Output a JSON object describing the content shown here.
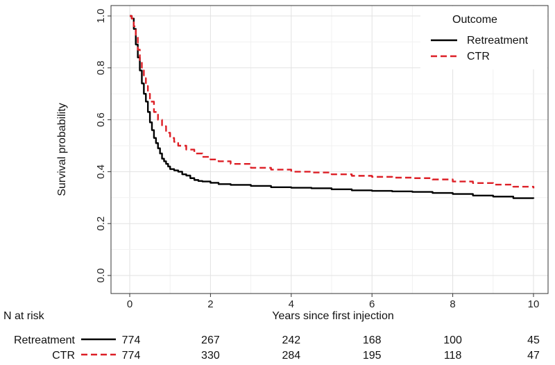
{
  "chart_data": {
    "type": "line",
    "title": "",
    "xlabel": "Years since first injection",
    "ylabel": "Survival probability",
    "xlim": [
      0,
      10
    ],
    "ylim": [
      0,
      1
    ],
    "x_ticks": [
      0,
      2,
      4,
      6,
      8,
      10
    ],
    "x_tick_labels": [
      "0",
      "2",
      "4",
      "6",
      "8",
      "10"
    ],
    "y_ticks": [
      0.0,
      0.2,
      0.4,
      0.6,
      0.8,
      1.0
    ],
    "y_tick_labels": [
      "0.0",
      "0.2",
      "0.4",
      "0.6",
      "0.8",
      "1.0"
    ],
    "grid": true,
    "legend": {
      "title": "Outcome",
      "position": "top-right",
      "entries": [
        "Retreatment",
        "CTR"
      ]
    },
    "series": [
      {
        "name": "Retreatment",
        "color": "#000000",
        "dash": "solid",
        "step": true,
        "points": [
          [
            0,
            1.0
          ],
          [
            0.05,
            0.99
          ],
          [
            0.1,
            0.95
          ],
          [
            0.15,
            0.89
          ],
          [
            0.2,
            0.84
          ],
          [
            0.25,
            0.79
          ],
          [
            0.3,
            0.74
          ],
          [
            0.35,
            0.7
          ],
          [
            0.4,
            0.67
          ],
          [
            0.45,
            0.63
          ],
          [
            0.5,
            0.59
          ],
          [
            0.55,
            0.56
          ],
          [
            0.6,
            0.53
          ],
          [
            0.65,
            0.51
          ],
          [
            0.7,
            0.49
          ],
          [
            0.75,
            0.47
          ],
          [
            0.8,
            0.45
          ],
          [
            0.85,
            0.44
          ],
          [
            0.9,
            0.43
          ],
          [
            0.95,
            0.42
          ],
          [
            1.0,
            0.41
          ],
          [
            1.1,
            0.405
          ],
          [
            1.2,
            0.4
          ],
          [
            1.3,
            0.39
          ],
          [
            1.4,
            0.385
          ],
          [
            1.5,
            0.375
          ],
          [
            1.6,
            0.368
          ],
          [
            1.7,
            0.364
          ],
          [
            1.8,
            0.362
          ],
          [
            2.0,
            0.357
          ],
          [
            2.2,
            0.352
          ],
          [
            2.5,
            0.349
          ],
          [
            3.0,
            0.345
          ],
          [
            3.5,
            0.34
          ],
          [
            4.0,
            0.338
          ],
          [
            4.5,
            0.336
          ],
          [
            5.0,
            0.332
          ],
          [
            5.5,
            0.328
          ],
          [
            6.0,
            0.326
          ],
          [
            6.5,
            0.324
          ],
          [
            7.0,
            0.322
          ],
          [
            7.5,
            0.318
          ],
          [
            8.0,
            0.314
          ],
          [
            8.5,
            0.308
          ],
          [
            9.0,
            0.304
          ],
          [
            9.5,
            0.298
          ],
          [
            10.0,
            0.296
          ]
        ]
      },
      {
        "name": "CTR",
        "color": "#dd1f26",
        "dash": "dashed",
        "step": true,
        "points": [
          [
            0,
            1.0
          ],
          [
            0.05,
            0.99
          ],
          [
            0.1,
            0.96
          ],
          [
            0.15,
            0.92
          ],
          [
            0.2,
            0.87
          ],
          [
            0.25,
            0.83
          ],
          [
            0.3,
            0.79
          ],
          [
            0.35,
            0.76
          ],
          [
            0.4,
            0.73
          ],
          [
            0.45,
            0.7
          ],
          [
            0.5,
            0.67
          ],
          [
            0.6,
            0.63
          ],
          [
            0.7,
            0.6
          ],
          [
            0.8,
            0.575
          ],
          [
            0.9,
            0.55
          ],
          [
            1.0,
            0.53
          ],
          [
            1.1,
            0.515
          ],
          [
            1.2,
            0.5
          ],
          [
            1.4,
            0.485
          ],
          [
            1.6,
            0.47
          ],
          [
            1.8,
            0.457
          ],
          [
            2.0,
            0.447
          ],
          [
            2.2,
            0.44
          ],
          [
            2.5,
            0.43
          ],
          [
            3.0,
            0.415
          ],
          [
            3.5,
            0.408
          ],
          [
            4.0,
            0.4
          ],
          [
            4.5,
            0.397
          ],
          [
            5.0,
            0.39
          ],
          [
            5.5,
            0.384
          ],
          [
            6.0,
            0.38
          ],
          [
            6.5,
            0.377
          ],
          [
            7.0,
            0.375
          ],
          [
            7.5,
            0.37
          ],
          [
            8.0,
            0.362
          ],
          [
            8.5,
            0.356
          ],
          [
            9.0,
            0.35
          ],
          [
            9.5,
            0.342
          ],
          [
            10.0,
            0.336
          ]
        ]
      }
    ],
    "risk_table": {
      "title": "N at risk",
      "times": [
        0,
        2,
        4,
        6,
        8,
        10
      ],
      "rows": [
        {
          "name": "Retreatment",
          "values": [
            "774",
            "267",
            "242",
            "168",
            "100",
            "45"
          ]
        },
        {
          "name": "CTR",
          "values": [
            "774",
            "330",
            "284",
            "195",
            "118",
            "47"
          ]
        }
      ]
    }
  }
}
